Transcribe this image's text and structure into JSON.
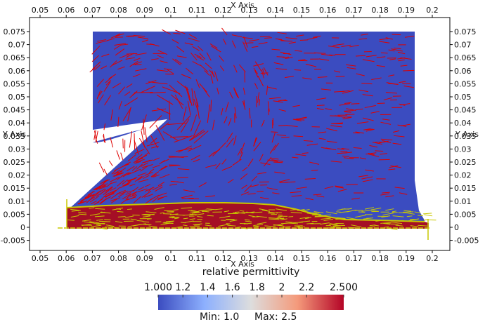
{
  "chart_data": {
    "type": "vector-field",
    "x_axis_title": "X Axis",
    "y_axis_title": "Y Axis",
    "xlim": [
      0.05,
      0.2
    ],
    "ylim": [
      -0.005,
      0.075
    ],
    "x_ticks": [
      "0.05",
      "0.06",
      "0.07",
      "0.08",
      "0.09",
      "0.1",
      "0.11",
      "0.12",
      "0.13",
      "0.14",
      "0.15",
      "0.16",
      "0.17",
      "0.18",
      "0.19",
      "0.2"
    ],
    "y_ticks": [
      "-0.005",
      "0",
      "0.005",
      "0.01",
      "0.015",
      "0.02",
      "0.025",
      "0.03",
      "0.035",
      "0.04",
      "0.045",
      "0.05",
      "0.055",
      "0.06",
      "0.065",
      "0.07",
      "0.075"
    ],
    "colorbar": {
      "title": "relative permittivity",
      "labels": [
        "1.000",
        "1.2",
        "1.4",
        "1.6",
        "1.8",
        "2",
        "2.2",
        "2.500"
      ],
      "min_label": "Min: 1.0",
      "max_label": "Max: 2.5",
      "min": 1.0,
      "max": 2.5,
      "colormap": [
        "#3b4cc0",
        "#dddddd",
        "#b40426"
      ]
    },
    "colors": {
      "low_region": "#3b4cc0",
      "high_region": "#a50f25",
      "vectors_air": "#dd0000",
      "vectors_dielectric": "#c8c800"
    }
  }
}
